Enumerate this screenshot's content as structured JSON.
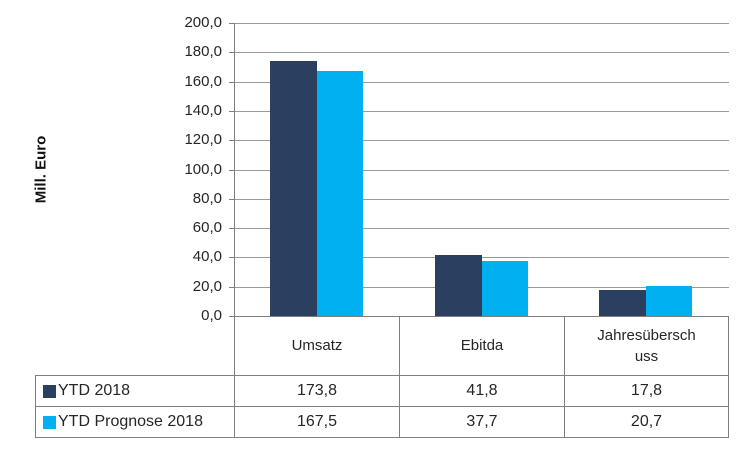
{
  "chart_data": {
    "type": "bar",
    "title": "",
    "ylabel": "Mill. Euro",
    "categories": [
      "Umsatz",
      "Ebitda",
      "Jahresüberschuss"
    ],
    "series": [
      {
        "name": "YTD 2018",
        "color": "#2B4060",
        "values": [
          173.8,
          41.8,
          17.8
        ]
      },
      {
        "name": "YTD Prognose 2018",
        "color": "#00B0F0",
        "values": [
          167.5,
          37.7,
          20.7
        ]
      }
    ],
    "ylim": [
      0,
      200
    ],
    "y_tick_step": 20,
    "y_tick_labels": [
      "200,0",
      "180,0",
      "160,0",
      "140,0",
      "120,0",
      "100,0",
      "80,0",
      "60,0",
      "40,0",
      "20,0",
      "0,0"
    ],
    "grid": true,
    "gridline_color": "#9a9a9a",
    "axis_color": "#7f7f7f",
    "legend_position": "data-table-left"
  },
  "data_table": {
    "category_cells": [
      "Umsatz",
      "Ebitda",
      "Jahresübersch\nuss"
    ],
    "rows": [
      {
        "legend": "YTD 2018",
        "swatch_color": "#2B4060",
        "cells": [
          "173,8",
          "41,8",
          "17,8"
        ]
      },
      {
        "legend": "YTD Prognose 2018",
        "swatch_color": "#00B0F0",
        "cells": [
          "167,5",
          "37,7",
          "20,7"
        ]
      }
    ]
  }
}
